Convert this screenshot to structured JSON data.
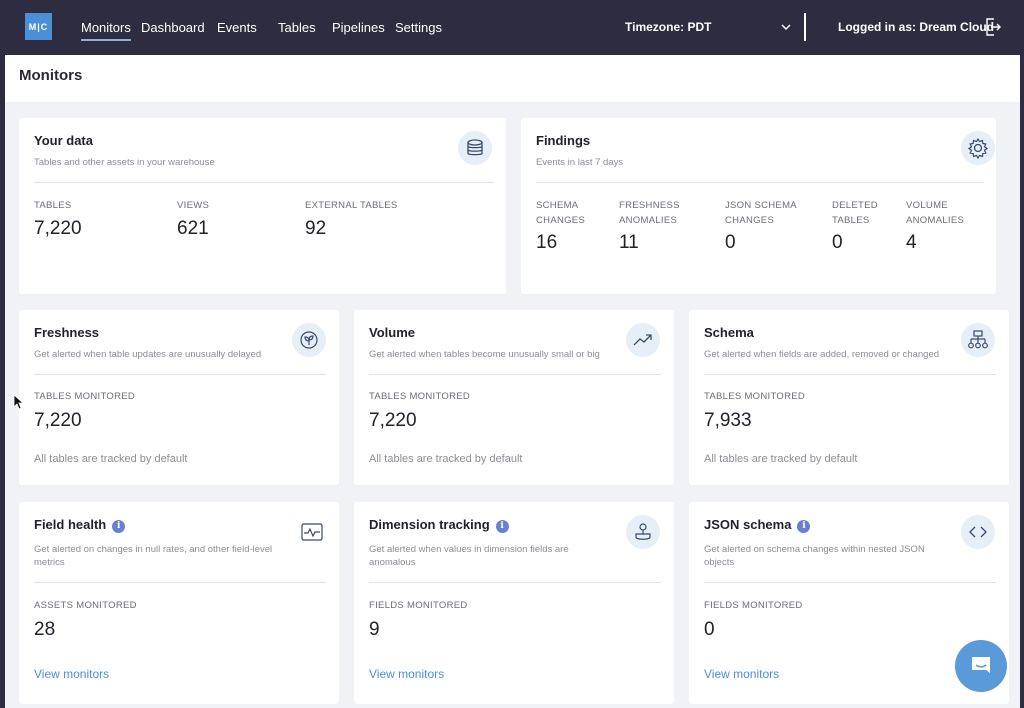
{
  "nav": {
    "logo": "M|C",
    "items": [
      "Monitors",
      "Dashboard",
      "Events",
      "Tables",
      "Pipelines",
      "Settings"
    ],
    "timezone": "Timezone: PDT",
    "user": "Logged in as: Dream Cloud"
  },
  "page": {
    "title": "Monitors"
  },
  "your_data": {
    "title": "Your data",
    "subtitle": "Tables and other assets in your warehouse",
    "icon": "database-icon",
    "stats": [
      {
        "label": "TABLES",
        "value": "7,220"
      },
      {
        "label": "VIEWS",
        "value": "621"
      },
      {
        "label": "EXTERNAL TABLES",
        "value": "92"
      }
    ]
  },
  "findings": {
    "title": "Findings",
    "subtitle": "Events in last 7 days",
    "icon": "gear-icon",
    "stats": [
      {
        "label1": "SCHEMA",
        "label2": "CHANGES",
        "value": "16"
      },
      {
        "label1": "FRESHNESS",
        "label2": "ANOMALIES",
        "value": "11"
      },
      {
        "label1": "JSON SCHEMA",
        "label2": "CHANGES",
        "value": "0"
      },
      {
        "label1": "DELETED",
        "label2": "TABLES",
        "value": "0"
      },
      {
        "label1": "VOLUME",
        "label2": "ANOMALIES",
        "value": "4"
      }
    ]
  },
  "monitors": [
    {
      "title": "Freshness",
      "subtitle": "Get alerted when table updates are unusually delayed",
      "stat_label": "TABLES MONITORED",
      "stat_value": "7,220",
      "footer": "All tables are tracked by default",
      "icon": "leaf-icon"
    },
    {
      "title": "Volume",
      "subtitle": "Get alerted when tables become unusually small or big",
      "stat_label": "TABLES MONITORED",
      "stat_value": "7,220",
      "footer": "All tables are tracked by default",
      "icon": "trend-up-icon"
    },
    {
      "title": "Schema",
      "subtitle": "Get alerted when fields are added, removed or changed",
      "stat_label": "TABLES MONITORED",
      "stat_value": "7,933",
      "footer": "All tables are tracked by default",
      "icon": "hierarchy-icon"
    },
    {
      "title": "Field health",
      "subtitle1": "Get alerted on changes in null rates, and other field-level",
      "subtitle2": "metrics",
      "stat_label": "ASSETS MONITORED",
      "stat_value": "28",
      "link": "View monitors",
      "icon": "pulse-icon"
    },
    {
      "title": "Dimension tracking",
      "subtitle1": "Get alerted when values in dimension fields are",
      "subtitle2": "anomalous",
      "stat_label": "FIELDS MONITORED",
      "stat_value": "9",
      "link": "View monitors",
      "icon": "dimension-icon"
    },
    {
      "title": "JSON schema",
      "subtitle1": "Get alerted on schema changes within nested JSON",
      "subtitle2": "objects",
      "stat_label": "FIELDS MONITORED",
      "stat_value": "0",
      "link": "View monitors",
      "icon": "code-icon"
    }
  ],
  "colors": {
    "nav_bg": "#2d2c40",
    "accent": "#4b8fd6",
    "info_badge": "#6a7fcf",
    "page_bg": "#f1f2f6"
  }
}
